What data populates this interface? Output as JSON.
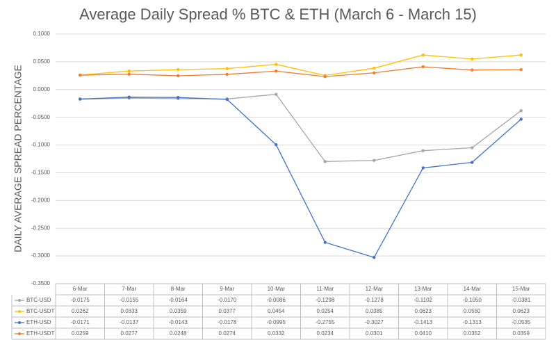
{
  "chart_data": {
    "type": "line",
    "title": "Average Daily Spread % BTC & ETH (March 6 - March 15)",
    "y_label": "DAILY AVERAGE SPREAD PERCENTAGE",
    "categories": [
      "6-Mar",
      "7-Mar",
      "8-Mar",
      "9-Mar",
      "10-Mar",
      "11-Mar",
      "12-Mar",
      "13-Mar",
      "14-Mar",
      "15-Mar"
    ],
    "ylim": [
      -0.35,
      0.1
    ],
    "yticks": [
      {
        "value": 0.1,
        "label": "0.1000"
      },
      {
        "value": 0.05,
        "label": "0.0500"
      },
      {
        "value": 0,
        "label": "0.0000"
      },
      {
        "value": -0.05,
        "label": "-0.0500"
      },
      {
        "value": -0.1,
        "label": "-0.1000"
      },
      {
        "value": -0.15,
        "label": "-0.1500"
      },
      {
        "value": -0.2,
        "label": "-0.2000"
      },
      {
        "value": -0.25,
        "label": "-0.2500"
      },
      {
        "value": -0.3,
        "label": "-0.3000"
      },
      {
        "value": -0.35,
        "label": "-0.3500"
      }
    ],
    "grid": true,
    "series": [
      {
        "name": "BTC-USD",
        "color": "#a5a5a5",
        "values": [
          -0.0175,
          -0.0155,
          -0.0164,
          -0.017,
          -0.0086,
          -0.1298,
          -0.1278,
          -0.1102,
          -0.105,
          -0.0381
        ],
        "value_labels": [
          "-0.0175",
          "-0.0155",
          "-0.0164",
          "-0.0170",
          "-0.0086",
          "-0.1298",
          "-0.1278",
          "-0.1102",
          "-0.1050",
          "-0.0381"
        ]
      },
      {
        "name": "BTC-USDT",
        "color": "#ffc000",
        "values": [
          0.0262,
          0.0333,
          0.0359,
          0.0377,
          0.0454,
          0.0254,
          0.0385,
          0.0623,
          0.055,
          0.0623
        ],
        "value_labels": [
          "0.0262",
          "0.0333",
          "0.0359",
          "0.0377",
          "0.0454",
          "0.0254",
          "0.0385",
          "0.0623",
          "0.0550",
          "0.0623"
        ]
      },
      {
        "name": "ETH-USD",
        "color": "#4472c4",
        "values": [
          -0.0171,
          -0.0137,
          -0.0143,
          -0.0178,
          -0.0995,
          -0.2755,
          -0.3027,
          -0.1413,
          -0.1313,
          -0.0535
        ],
        "value_labels": [
          "-0.0171",
          "-0.0137",
          "-0.0143",
          "-0.0178",
          "-0.0995",
          "-0.2755",
          "-0.3027",
          "-0.1413",
          "-0.1313",
          "-0.0535"
        ]
      },
      {
        "name": "ETH-USDT",
        "color": "#ed7d31",
        "values": [
          0.0259,
          0.0277,
          0.0248,
          0.0274,
          0.0332,
          0.0234,
          0.0301,
          0.041,
          0.0352,
          0.0359
        ],
        "value_labels": [
          "0.0259",
          "0.0277",
          "0.0248",
          "0.0274",
          "0.0332",
          "0.0234",
          "0.0301",
          "0.0410",
          "0.0352",
          "0.0359"
        ]
      }
    ]
  }
}
